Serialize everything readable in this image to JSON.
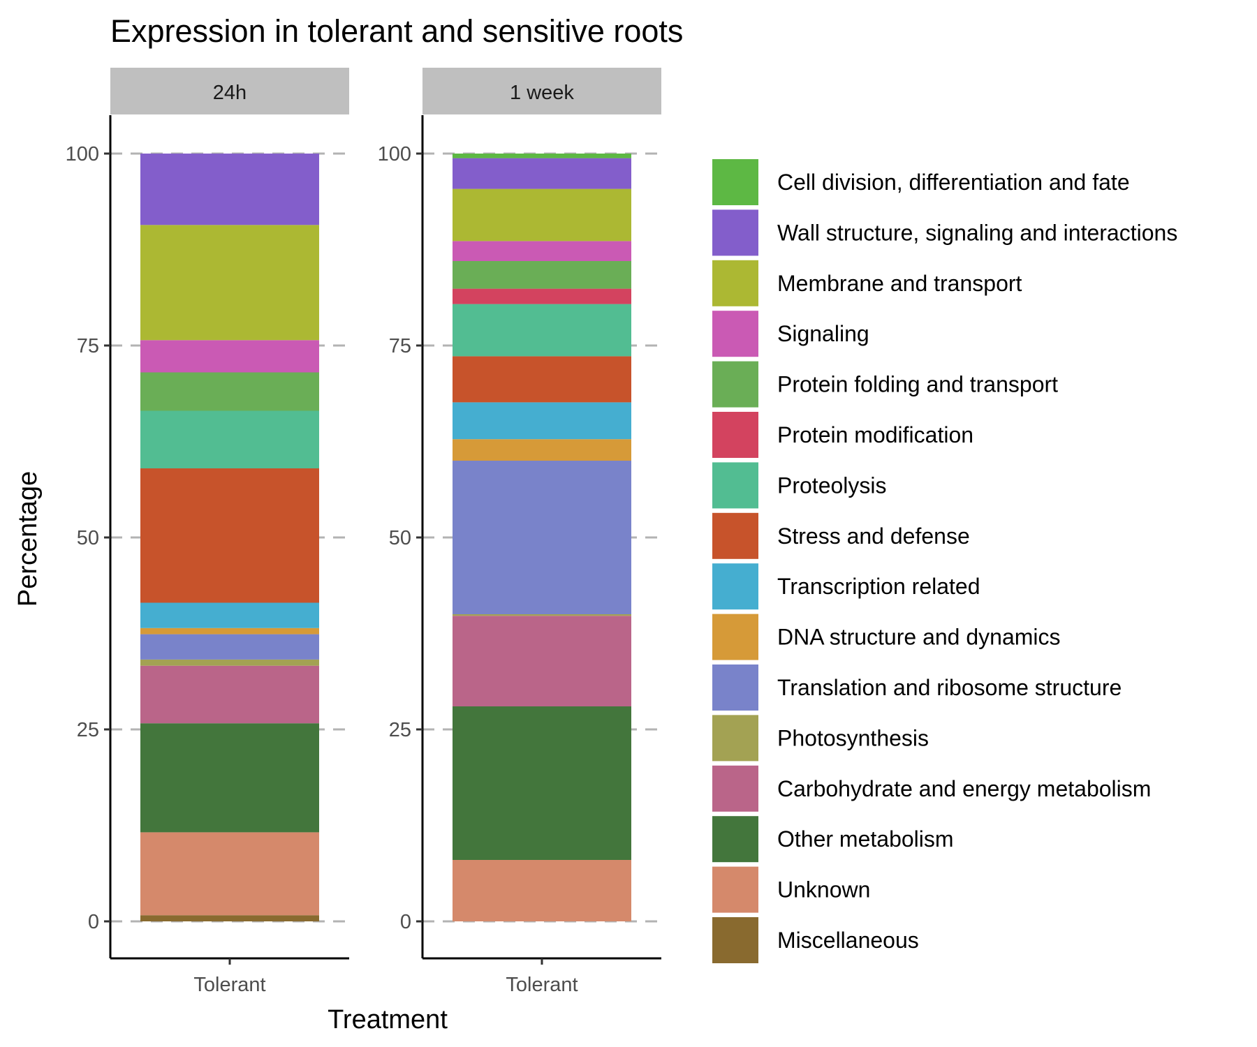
{
  "chart_data": {
    "type": "bar",
    "stacked": true,
    "percent": true,
    "title": "Expression in tolerant and sensitive roots",
    "xlabel": "Treatment",
    "ylabel": "Percentage",
    "ylim": [
      0,
      100
    ],
    "yticks": [
      0,
      25,
      50,
      75,
      100
    ],
    "grid": "dashed horizontal major",
    "legend_position": "right",
    "categories": [
      "Tolerant"
    ],
    "panels": [
      {
        "label": "24h",
        "category": "Tolerant",
        "segments": [
          {
            "name": "Miscellaneous",
            "value": 0.8
          },
          {
            "name": "Unknown",
            "value": 10.8
          },
          {
            "name": "Other metabolism",
            "value": 14.2
          },
          {
            "name": "Carbohydrate and energy metabolism",
            "value": 7.5
          },
          {
            "name": "Photosynthesis",
            "value": 0.8
          },
          {
            "name": "Translation and ribosome structure",
            "value": 3.3
          },
          {
            "name": "DNA structure and dynamics",
            "value": 0.8
          },
          {
            "name": "Transcription related",
            "value": 3.3
          },
          {
            "name": "Stress and defense",
            "value": 17.5
          },
          {
            "name": "Proteolysis",
            "value": 7.5
          },
          {
            "name": "Protein folding and transport",
            "value": 5.0
          },
          {
            "name": "Protein modification",
            "value": 0.0
          },
          {
            "name": "Signaling",
            "value": 4.2
          },
          {
            "name": "Membrane and transport",
            "value": 15.0
          },
          {
            "name": "Wall structure, signaling and interactions",
            "value": 9.3
          },
          {
            "name": "Cell division, differentiation and fate",
            "value": 0.0
          }
        ]
      },
      {
        "label": "1 week",
        "category": "Tolerant",
        "segments": [
          {
            "name": "Miscellaneous",
            "value": 0.0
          },
          {
            "name": "Unknown",
            "value": 8.0
          },
          {
            "name": "Other metabolism",
            "value": 20.0
          },
          {
            "name": "Carbohydrate and energy metabolism",
            "value": 11.8
          },
          {
            "name": "Photosynthesis",
            "value": 0.2
          },
          {
            "name": "Translation and ribosome structure",
            "value": 20.0
          },
          {
            "name": "DNA structure and dynamics",
            "value": 2.8
          },
          {
            "name": "Transcription related",
            "value": 4.8
          },
          {
            "name": "Stress and defense",
            "value": 6.0
          },
          {
            "name": "Proteolysis",
            "value": 6.8
          },
          {
            "name": "Protein modification",
            "value": 2.0
          },
          {
            "name": "Protein folding and transport",
            "value": 3.6
          },
          {
            "name": "Signaling",
            "value": 2.6
          },
          {
            "name": "Membrane and transport",
            "value": 6.8
          },
          {
            "name": "Wall structure, signaling and interactions",
            "value": 4.0
          },
          {
            "name": "Cell division, differentiation and fate",
            "value": 0.6
          }
        ]
      }
    ],
    "legend": [
      {
        "name": "Cell division, differentiation and fate",
        "color": "#5db844"
      },
      {
        "name": "Wall structure, signaling and interactions",
        "color": "#835ecb"
      },
      {
        "name": "Membrane and transport",
        "color": "#acb833"
      },
      {
        "name": "Signaling",
        "color": "#ca5ab4"
      },
      {
        "name": "Protein folding and transport",
        "color": "#6aae56"
      },
      {
        "name": "Protein modification",
        "color": "#d3435f"
      },
      {
        "name": "Proteolysis",
        "color": "#52bd92"
      },
      {
        "name": "Stress and defense",
        "color": "#c7532b"
      },
      {
        "name": "Transcription related",
        "color": "#45aed0"
      },
      {
        "name": "DNA structure and dynamics",
        "color": "#d69a38"
      },
      {
        "name": "Translation and ribosome structure",
        "color": "#7983ca"
      },
      {
        "name": "Photosynthesis",
        "color": "#a3a253"
      },
      {
        "name": "Carbohydrate and energy metabolism",
        "color": "#ba6589"
      },
      {
        "name": "Other metabolism",
        "color": "#43763c"
      },
      {
        "name": "Unknown",
        "color": "#d5896b"
      },
      {
        "name": "Miscellaneous",
        "color": "#896a2f"
      }
    ]
  }
}
